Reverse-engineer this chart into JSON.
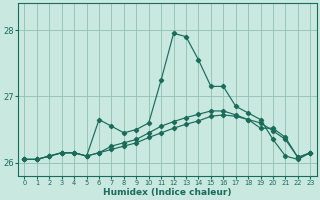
{
  "xlabel": "Humidex (Indice chaleur)",
  "background_color": "#c8e8e0",
  "grid_color": "#90c0b0",
  "line_color": "#1a6b5a",
  "xlim": [
    -0.5,
    23.5
  ],
  "ylim": [
    25.8,
    28.4
  ],
  "yticks": [
    26,
    27,
    28
  ],
  "xticks": [
    0,
    1,
    2,
    3,
    4,
    5,
    6,
    7,
    8,
    9,
    10,
    11,
    12,
    13,
    14,
    15,
    16,
    17,
    18,
    19,
    20,
    21,
    22,
    23
  ],
  "hours": [
    0,
    1,
    2,
    3,
    4,
    5,
    6,
    7,
    8,
    9,
    10,
    11,
    12,
    13,
    14,
    15,
    16,
    17,
    18,
    19,
    20,
    21,
    22,
    23
  ],
  "line1": [
    26.05,
    26.05,
    26.1,
    26.15,
    26.15,
    26.1,
    26.65,
    26.55,
    26.45,
    26.5,
    26.6,
    27.25,
    27.95,
    27.9,
    27.55,
    27.15,
    27.15,
    26.85,
    26.75,
    26.65,
    26.35,
    26.1,
    26.05,
    26.15
  ],
  "line2": [
    26.05,
    26.05,
    26.1,
    26.15,
    26.15,
    26.1,
    26.15,
    26.2,
    26.25,
    26.3,
    26.38,
    26.45,
    26.52,
    26.58,
    26.63,
    26.7,
    26.72,
    26.7,
    26.65,
    26.6,
    26.48,
    26.35,
    26.08,
    26.15
  ],
  "line3": [
    26.05,
    26.05,
    26.1,
    26.15,
    26.15,
    26.1,
    26.15,
    26.25,
    26.3,
    26.35,
    26.45,
    26.55,
    26.62,
    26.68,
    26.73,
    26.78,
    26.78,
    26.72,
    26.65,
    26.52,
    26.52,
    26.38,
    26.08,
    26.15
  ]
}
